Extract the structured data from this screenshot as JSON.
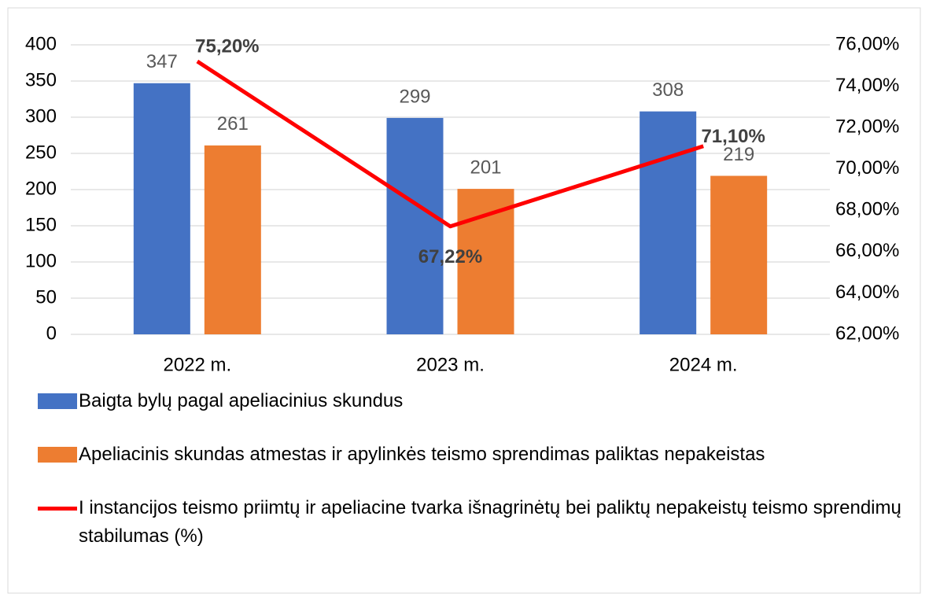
{
  "chart_data": {
    "type": "bar-line",
    "categories": [
      "2022 m.",
      "2023 m.",
      "2024 m."
    ],
    "series": [
      {
        "name": "Baigta bylų pagal apeliacinius skundus",
        "color": "#4472c4",
        "type": "bar",
        "values": [
          347,
          299,
          308
        ]
      },
      {
        "name": "Apeliacinis skundas atmestas ir apylinkės teismo sprendimas paliktas nepakeistas",
        "color": "#ed7d31",
        "type": "bar",
        "values": [
          261,
          201,
          219
        ]
      },
      {
        "name": "I instancijos teismo priimtų ir apeliacine tvarka išnagrinėtų bei paliktų nepakeistų teismo sprendimų stabilumas (%)",
        "color": "#ff0000",
        "type": "line",
        "axis": "y2",
        "values": [
          75.2,
          67.22,
          71.1
        ],
        "value_labels": [
          "75,20%",
          "67,22%",
          "71,10%"
        ]
      }
    ],
    "ylim": [
      0,
      400
    ],
    "yticks": [
      0,
      50,
      100,
      150,
      200,
      250,
      300,
      350,
      400
    ],
    "y2lim": [
      62,
      76
    ],
    "y2ticks": [
      {
        "value": 62,
        "label": "62,00%"
      },
      {
        "value": 64,
        "label": "64,00%"
      },
      {
        "value": 66,
        "label": "66,00%"
      },
      {
        "value": 68,
        "label": "68,00%"
      },
      {
        "value": 70,
        "label": "70,00%"
      },
      {
        "value": 72,
        "label": "72,00%"
      },
      {
        "value": 74,
        "label": "74,00%"
      },
      {
        "value": 76,
        "label": "76,00%"
      }
    ],
    "grid": true,
    "legend": "bottom"
  }
}
